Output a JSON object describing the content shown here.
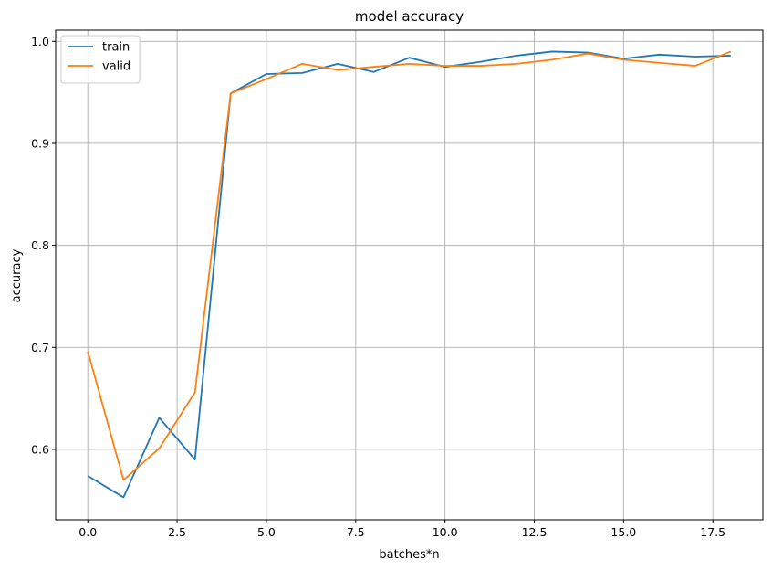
{
  "chart_data": {
    "type": "line",
    "title": "model accuracy",
    "xlabel": "batches*n",
    "ylabel": "accuracy",
    "xlim": [
      -0.9,
      18.9
    ],
    "ylim": [
      0.531,
      1.011
    ],
    "xticks": [
      0.0,
      2.5,
      5.0,
      7.5,
      10.0,
      12.5,
      15.0,
      17.5
    ],
    "xtick_labels": [
      "0.0",
      "2.5",
      "5.0",
      "7.5",
      "10.0",
      "12.5",
      "15.0",
      "17.5"
    ],
    "yticks": [
      0.6,
      0.7,
      0.8,
      0.9,
      1.0
    ],
    "ytick_labels": [
      "0.6",
      "0.7",
      "0.8",
      "0.9",
      "1.0"
    ],
    "grid": true,
    "legend_position": "top-left",
    "x": [
      0,
      1,
      2,
      3,
      4,
      5,
      6,
      7,
      8,
      9,
      10,
      11,
      12,
      13,
      14,
      15,
      16,
      17,
      18
    ],
    "series": [
      {
        "name": "train",
        "color": "#1f77b4",
        "values": [
          0.574,
          0.553,
          0.631,
          0.59,
          0.949,
          0.968,
          0.969,
          0.978,
          0.97,
          0.984,
          0.975,
          0.98,
          0.986,
          0.99,
          0.989,
          0.983,
          0.987,
          0.985,
          0.986
        ]
      },
      {
        "name": "valid",
        "color": "#ff7f0e",
        "values": [
          0.696,
          0.57,
          0.601,
          0.656,
          0.949,
          0.963,
          0.978,
          0.972,
          0.975,
          0.978,
          0.976,
          0.976,
          0.978,
          0.982,
          0.988,
          0.982,
          0.979,
          0.976,
          0.99
        ]
      }
    ]
  }
}
